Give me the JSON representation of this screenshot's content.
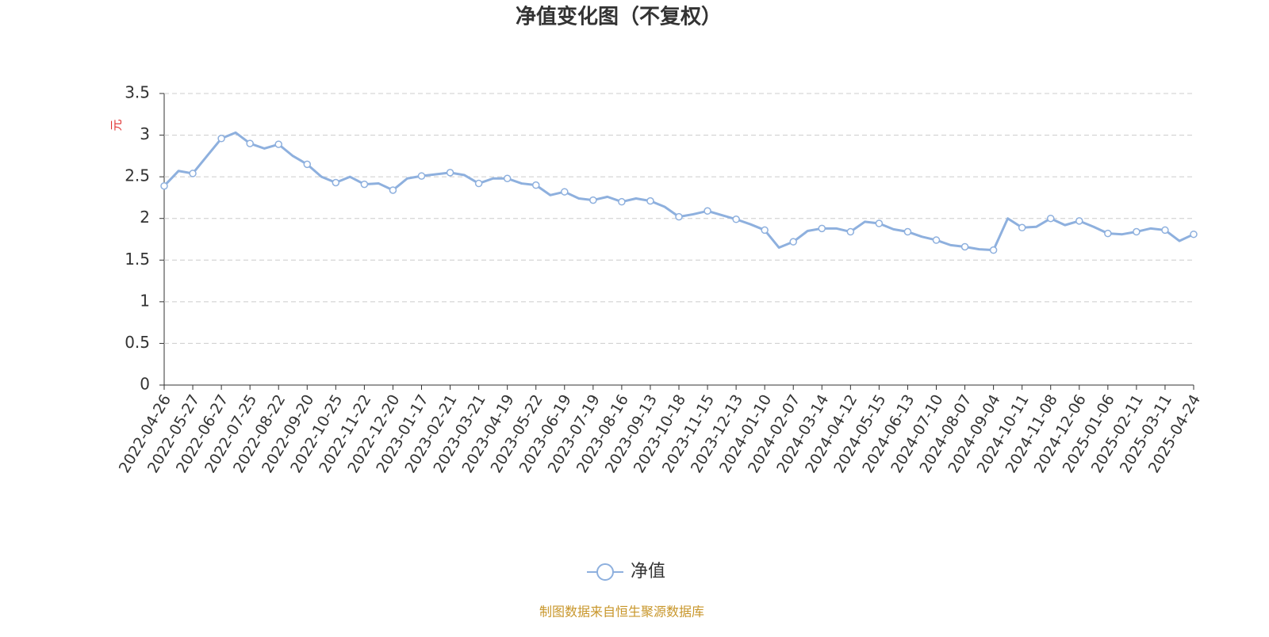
{
  "chart_data": {
    "type": "line",
    "title": "净值变化图（不复权）",
    "y_label": "元",
    "source": "制图数据来自恒生聚源数据库",
    "categories": [
      "2022-04-26",
      null,
      "2022-05-27",
      null,
      "2022-06-27",
      null,
      "2022-07-25",
      null,
      "2022-08-22",
      null,
      "2022-09-20",
      null,
      "2022-10-25",
      null,
      "2022-11-22",
      null,
      "2022-12-20",
      null,
      "2023-01-17",
      null,
      "2023-02-21",
      null,
      "2023-03-21",
      null,
      "2023-04-19",
      null,
      "2023-05-22",
      null,
      "2023-06-19",
      null,
      "2023-07-19",
      null,
      "2023-08-16",
      null,
      "2023-09-13",
      null,
      "2023-10-18",
      null,
      "2023-11-15",
      null,
      "2023-12-13",
      null,
      "2024-01-10",
      null,
      "2024-02-07",
      null,
      "2024-03-14",
      null,
      "2024-04-12",
      null,
      "2024-05-15",
      null,
      "2024-06-13",
      null,
      "2024-07-10",
      null,
      "2024-08-07",
      null,
      "2024-09-04",
      null,
      "2024-10-11",
      null,
      "2024-11-08",
      null,
      "2024-12-06",
      null,
      "2025-01-06",
      null,
      "2025-02-11",
      null,
      "2025-03-11",
      null,
      "2025-04-24"
    ],
    "series": [
      {
        "name": "净值",
        "color": "#8eb0de",
        "values": [
          2.39,
          2.57,
          2.54,
          2.75,
          2.96,
          3.03,
          2.9,
          2.84,
          2.89,
          2.75,
          2.65,
          2.5,
          2.43,
          2.5,
          2.41,
          2.42,
          2.34,
          2.48,
          2.51,
          2.53,
          2.55,
          2.52,
          2.42,
          2.48,
          2.48,
          2.42,
          2.4,
          2.28,
          2.32,
          2.24,
          2.22,
          2.26,
          2.2,
          2.24,
          2.21,
          2.14,
          2.02,
          2.05,
          2.09,
          2.04,
          1.99,
          1.93,
          1.86,
          1.65,
          1.72,
          1.85,
          1.88,
          1.88,
          1.84,
          1.96,
          1.94,
          1.87,
          1.84,
          1.78,
          1.74,
          1.68,
          1.66,
          1.63,
          1.62,
          2.0,
          1.89,
          1.9,
          2.0,
          1.92,
          1.97,
          1.9,
          1.82,
          1.81,
          1.84,
          1.88,
          1.86,
          1.73,
          1.81
        ]
      }
    ],
    "ylim": [
      0,
      3.5
    ],
    "yticks": [
      0,
      0.5,
      1,
      1.5,
      2,
      2.5,
      3,
      3.5
    ],
    "grid": true
  }
}
